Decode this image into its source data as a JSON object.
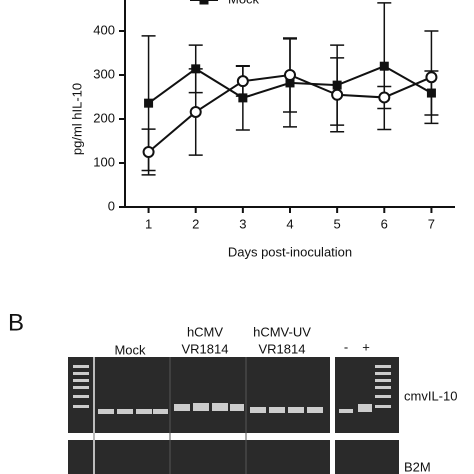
{
  "chart_data": {
    "type": "line",
    "x_label": "Days post-inoculation",
    "y_label": "pg/ml hIL-10",
    "x": [
      1,
      2,
      3,
      4,
      5,
      6,
      7
    ],
    "xlim": [
      0.5,
      7.5
    ],
    "xticks": [
      1,
      2,
      3,
      4,
      5,
      6,
      7
    ],
    "ylim": [
      0,
      500
    ],
    "yticks": [
      0,
      100,
      200,
      300,
      400
    ],
    "series": [
      {
        "name": "Mock",
        "marker": "square",
        "color": "#111111",
        "values": [
          236,
          314,
          248,
          282,
          277,
          320,
          259
        ],
        "errors": [
          153,
          54,
          73,
          100,
          91,
          144,
          50
        ]
      },
      {
        "marker": "circle",
        "color": "#111111",
        "values": [
          125,
          216,
          286,
          300,
          255,
          249,
          295
        ],
        "errors": [
          52,
          98,
          34,
          84,
          84,
          25,
          105
        ]
      }
    ]
  },
  "panel_b": {
    "label": "B",
    "lanes": [
      "Mock",
      "hCMV",
      "VR1814",
      "hCMV-UV",
      "VR1814",
      "-",
      "+"
    ],
    "genes": [
      "cmvIL-10",
      "B2M"
    ]
  }
}
